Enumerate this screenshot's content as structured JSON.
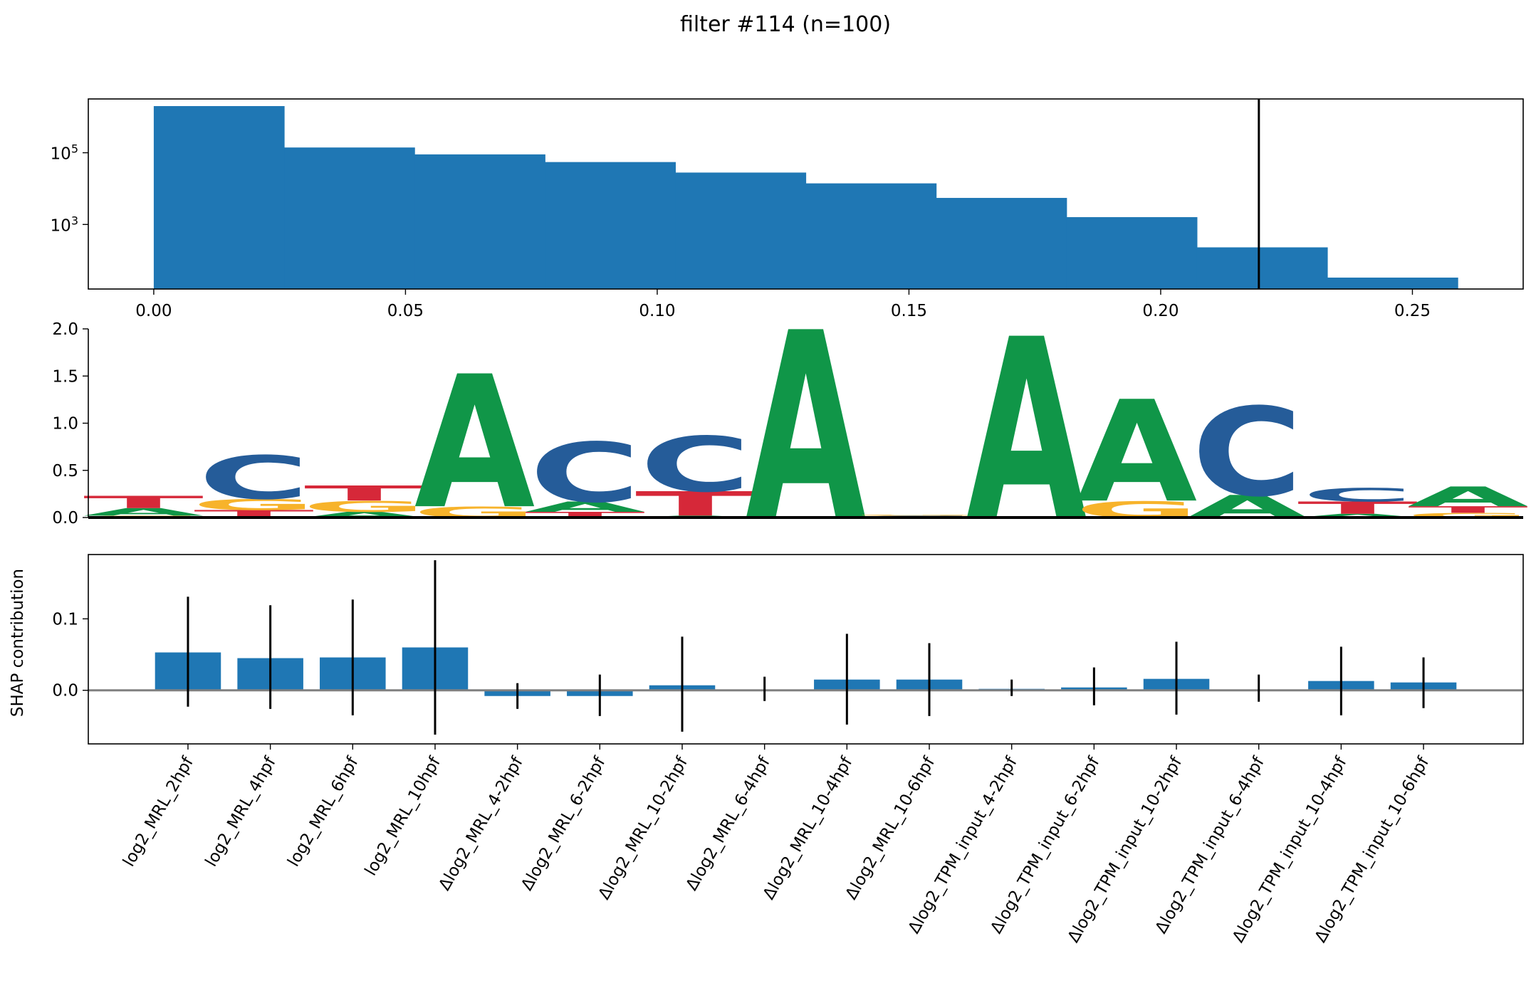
{
  "title": "filter #114 (n=100)",
  "colors": {
    "bar": "#1f77b4",
    "threshold": "#000000",
    "zero_line": "#808080",
    "error_bar": "#000000",
    "A": "#109648",
    "C": "#255c99",
    "G": "#f7b32b",
    "T": "#d62839"
  },
  "chart_data": [
    {
      "type": "bar",
      "name": "activation-histogram",
      "bin_edges": [
        0.0,
        0.0259,
        0.0518,
        0.0777,
        0.1036,
        0.1295,
        0.1554,
        0.1813,
        0.2072,
        0.2331,
        0.259
      ],
      "counts": [
        2000000,
        140000,
        90000,
        55000,
        28000,
        14000,
        5500,
        1600,
        230,
        33
      ],
      "threshold": 0.2195,
      "xlim": [
        -0.013,
        0.272
      ],
      "ylim_log10": [
        1.2,
        6.5
      ],
      "y_scale": "log",
      "x_ticks": [
        "0.00",
        "0.05",
        "0.10",
        "0.15",
        "0.20",
        "0.25"
      ],
      "x_tick_values": [
        0.0,
        0.05,
        0.1,
        0.15,
        0.2,
        0.25
      ],
      "y_ticks": [
        {
          "base": "10",
          "exp": "5",
          "value": 100000
        },
        {
          "base": "10",
          "exp": "3",
          "value": 1000
        }
      ]
    },
    {
      "type": "sequence-logo",
      "name": "motif-logo",
      "ylim": [
        0,
        2.0
      ],
      "y_ticks": [
        "0.0",
        "0.5",
        "1.0",
        "1.5",
        "2.0"
      ],
      "y_tick_values": [
        0,
        0.5,
        1.0,
        1.5,
        2.0
      ],
      "positions": [
        [
          [
            "G",
            0.02
          ],
          [
            "A",
            0.08
          ],
          [
            "T",
            0.13
          ]
        ],
        [
          [
            "T",
            0.08
          ],
          [
            "G",
            0.12
          ],
          [
            "C",
            0.48
          ]
        ],
        [
          [
            "A",
            0.06
          ],
          [
            "G",
            0.12
          ],
          [
            "T",
            0.16
          ]
        ],
        [
          [
            "G",
            0.12
          ],
          [
            "A",
            1.41
          ]
        ],
        [
          [
            "T",
            0.06
          ],
          [
            "A",
            0.11
          ],
          [
            "C",
            0.66
          ]
        ],
        [
          [
            "A",
            0.02
          ],
          [
            "T",
            0.26
          ],
          [
            "C",
            0.61
          ]
        ],
        [
          [
            "A",
            2.0
          ]
        ],
        [
          [
            "C",
            0.02
          ],
          [
            "G",
            0.01
          ]
        ],
        [
          [
            "A",
            1.93
          ]
        ],
        [
          [
            "G",
            0.18
          ],
          [
            "A",
            1.08
          ]
        ],
        [
          [
            "A",
            0.24
          ],
          [
            "C",
            0.98
          ]
        ],
        [
          [
            "A",
            0.04
          ],
          [
            "T",
            0.13
          ],
          [
            "C",
            0.15
          ]
        ],
        [
          [
            "G",
            0.05
          ],
          [
            "T",
            0.07
          ],
          [
            "A",
            0.21
          ]
        ]
      ]
    },
    {
      "type": "bar",
      "name": "shap-contributions",
      "ylabel": "SHAP contribution",
      "ylim": [
        -0.075,
        0.19
      ],
      "y_ticks": [
        "0.0",
        "0.1"
      ],
      "y_tick_values": [
        0,
        0.1
      ],
      "categories": [
        "log2_MRL_2hpf",
        "log2_MRL_4hpf",
        "log2_MRL_6hpf",
        "log2_MRL_10hpf",
        "Δlog2_MRL_4-2hpf",
        "Δlog2_MRL_6-2hpf",
        "Δlog2_MRL_10-2hpf",
        "Δlog2_MRL_6-4hpf",
        "Δlog2_MRL_10-4hpf",
        "Δlog2_MRL_10-6hpf",
        "Δlog2_TPM_input_4-2hpf",
        "Δlog2_TPM_input_6-2hpf",
        "Δlog2_TPM_input_10-2hpf",
        "Δlog2_TPM_input_6-4hpf",
        "Δlog2_TPM_input_10-4hpf",
        "Δlog2_TPM_input_10-6hpf"
      ],
      "values": [
        0.053,
        0.045,
        0.046,
        0.06,
        -0.008,
        -0.008,
        0.007,
        0.0,
        0.015,
        0.015,
        0.002,
        0.004,
        0.016,
        0.0,
        0.013,
        0.011
      ],
      "error_low": [
        -0.023,
        -0.026,
        -0.035,
        -0.062,
        -0.026,
        -0.036,
        -0.058,
        -0.015,
        -0.048,
        -0.036,
        -0.008,
        -0.021,
        -0.034,
        -0.016,
        -0.035,
        -0.025
      ],
      "error_high": [
        0.131,
        0.119,
        0.127,
        0.182,
        0.01,
        0.022,
        0.075,
        0.019,
        0.079,
        0.066,
        0.015,
        0.032,
        0.068,
        0.022,
        0.061,
        0.046
      ]
    }
  ]
}
